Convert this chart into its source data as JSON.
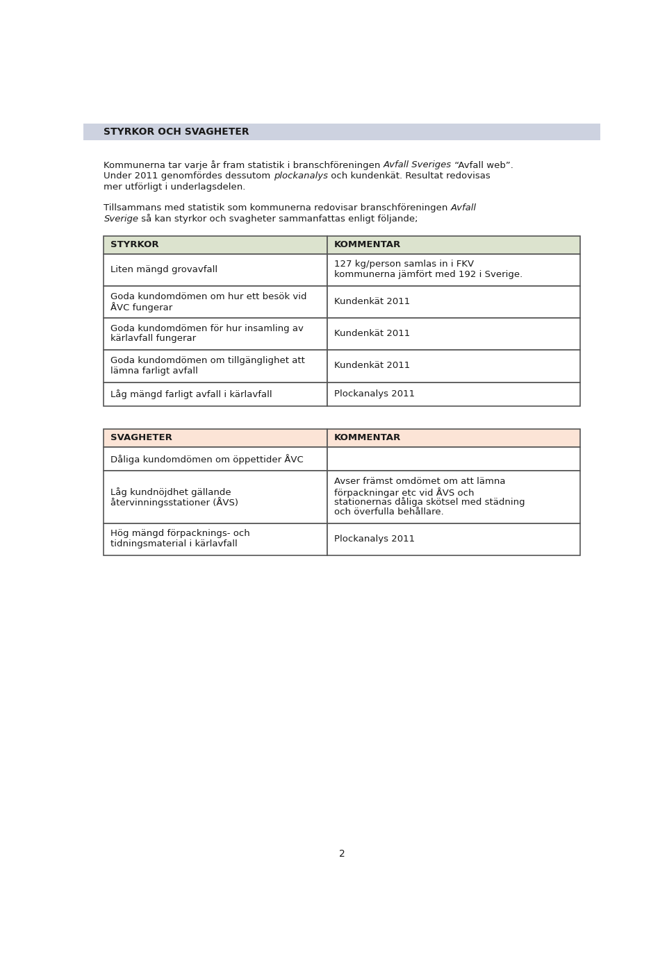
{
  "page_bg": "#ffffff",
  "header_bg": "#cdd2e0",
  "header_text": "STYRKOR OCH SVAGHETER",
  "header_text_color": "#1a1a1a",
  "body_text_color": "#1a1a1a",
  "styrkor_header_bg": "#dce3ce",
  "svagheter_header_bg": "#fce4d6",
  "table_border": "#555555",
  "table_cell_bg": "#ffffff",
  "styrkor_table": {
    "col1_header": "STYRKOR",
    "col2_header": "KOMMENTAR",
    "rows": [
      [
        "Liten mängd grovavfall",
        "127 kg/person samlas in i FKV\nkommunerna jämfört med 192 i Sverige."
      ],
      [
        "Goda kundomdömen om hur ett besök vid\nÅVC fungerar",
        "Kundenkät 2011"
      ],
      [
        "Goda kundomdömen för hur insamling av\nkärlavfall fungerar",
        "Kundenkät 2011"
      ],
      [
        "Goda kundomdömen om tillgänglighet att\nlämna farligt avfall",
        "Kundenkät 2011"
      ],
      [
        "Låg mängd farligt avfall i kärlavfall",
        "Plockanalys 2011"
      ]
    ]
  },
  "svagheter_table": {
    "col1_header": "SVAGHETER",
    "col2_header": "KOMMENTAR",
    "rows": [
      [
        "Dåliga kundomdömen om öppettider ÅVC",
        ""
      ],
      [
        "Låg kundnöjdhet gällande\nåtervinningsstationer (ÅVS)",
        "Avser främst omdömet om att lämna\nförpackningar etc vid ÅVS och\nstationernas dåliga skötsel med städning\noch överfulla behållare."
      ],
      [
        "Hög mängd förpacknings- och\ntidningsmaterial i kärlavfall",
        "Plockanalys 2011"
      ]
    ]
  },
  "page_number": "2",
  "font_size_header_bar": 10,
  "font_size_body": 9.5,
  "font_size_table": 9.5
}
